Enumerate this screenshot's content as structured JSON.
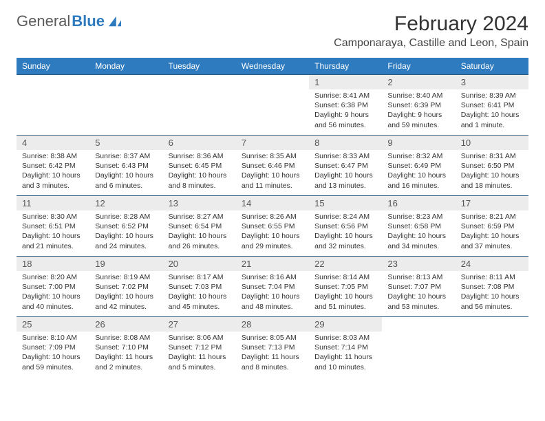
{
  "brand": {
    "name1": "General",
    "name2": "Blue"
  },
  "title": "February 2024",
  "location": "Camponaraya, Castille and Leon, Spain",
  "weekdays": [
    "Sunday",
    "Monday",
    "Tuesday",
    "Wednesday",
    "Thursday",
    "Friday",
    "Saturday"
  ],
  "colors": {
    "header_bg": "#2f7bbf",
    "header_text": "#ffffff",
    "daynum_bg": "#ececec",
    "border": "#2f5a7a",
    "brand_gray": "#5a5a5a",
    "brand_blue": "#2f7bbf"
  },
  "weeks": [
    [
      null,
      null,
      null,
      null,
      {
        "n": "1",
        "sr": "Sunrise: 8:41 AM",
        "ss": "Sunset: 6:38 PM",
        "d1": "Daylight: 9 hours",
        "d2": "and 56 minutes."
      },
      {
        "n": "2",
        "sr": "Sunrise: 8:40 AM",
        "ss": "Sunset: 6:39 PM",
        "d1": "Daylight: 9 hours",
        "d2": "and 59 minutes."
      },
      {
        "n": "3",
        "sr": "Sunrise: 8:39 AM",
        "ss": "Sunset: 6:41 PM",
        "d1": "Daylight: 10 hours",
        "d2": "and 1 minute."
      }
    ],
    [
      {
        "n": "4",
        "sr": "Sunrise: 8:38 AM",
        "ss": "Sunset: 6:42 PM",
        "d1": "Daylight: 10 hours",
        "d2": "and 3 minutes."
      },
      {
        "n": "5",
        "sr": "Sunrise: 8:37 AM",
        "ss": "Sunset: 6:43 PM",
        "d1": "Daylight: 10 hours",
        "d2": "and 6 minutes."
      },
      {
        "n": "6",
        "sr": "Sunrise: 8:36 AM",
        "ss": "Sunset: 6:45 PM",
        "d1": "Daylight: 10 hours",
        "d2": "and 8 minutes."
      },
      {
        "n": "7",
        "sr": "Sunrise: 8:35 AM",
        "ss": "Sunset: 6:46 PM",
        "d1": "Daylight: 10 hours",
        "d2": "and 11 minutes."
      },
      {
        "n": "8",
        "sr": "Sunrise: 8:33 AM",
        "ss": "Sunset: 6:47 PM",
        "d1": "Daylight: 10 hours",
        "d2": "and 13 minutes."
      },
      {
        "n": "9",
        "sr": "Sunrise: 8:32 AM",
        "ss": "Sunset: 6:49 PM",
        "d1": "Daylight: 10 hours",
        "d2": "and 16 minutes."
      },
      {
        "n": "10",
        "sr": "Sunrise: 8:31 AM",
        "ss": "Sunset: 6:50 PM",
        "d1": "Daylight: 10 hours",
        "d2": "and 18 minutes."
      }
    ],
    [
      {
        "n": "11",
        "sr": "Sunrise: 8:30 AM",
        "ss": "Sunset: 6:51 PM",
        "d1": "Daylight: 10 hours",
        "d2": "and 21 minutes."
      },
      {
        "n": "12",
        "sr": "Sunrise: 8:28 AM",
        "ss": "Sunset: 6:52 PM",
        "d1": "Daylight: 10 hours",
        "d2": "and 24 minutes."
      },
      {
        "n": "13",
        "sr": "Sunrise: 8:27 AM",
        "ss": "Sunset: 6:54 PM",
        "d1": "Daylight: 10 hours",
        "d2": "and 26 minutes."
      },
      {
        "n": "14",
        "sr": "Sunrise: 8:26 AM",
        "ss": "Sunset: 6:55 PM",
        "d1": "Daylight: 10 hours",
        "d2": "and 29 minutes."
      },
      {
        "n": "15",
        "sr": "Sunrise: 8:24 AM",
        "ss": "Sunset: 6:56 PM",
        "d1": "Daylight: 10 hours",
        "d2": "and 32 minutes."
      },
      {
        "n": "16",
        "sr": "Sunrise: 8:23 AM",
        "ss": "Sunset: 6:58 PM",
        "d1": "Daylight: 10 hours",
        "d2": "and 34 minutes."
      },
      {
        "n": "17",
        "sr": "Sunrise: 8:21 AM",
        "ss": "Sunset: 6:59 PM",
        "d1": "Daylight: 10 hours",
        "d2": "and 37 minutes."
      }
    ],
    [
      {
        "n": "18",
        "sr": "Sunrise: 8:20 AM",
        "ss": "Sunset: 7:00 PM",
        "d1": "Daylight: 10 hours",
        "d2": "and 40 minutes."
      },
      {
        "n": "19",
        "sr": "Sunrise: 8:19 AM",
        "ss": "Sunset: 7:02 PM",
        "d1": "Daylight: 10 hours",
        "d2": "and 42 minutes."
      },
      {
        "n": "20",
        "sr": "Sunrise: 8:17 AM",
        "ss": "Sunset: 7:03 PM",
        "d1": "Daylight: 10 hours",
        "d2": "and 45 minutes."
      },
      {
        "n": "21",
        "sr": "Sunrise: 8:16 AM",
        "ss": "Sunset: 7:04 PM",
        "d1": "Daylight: 10 hours",
        "d2": "and 48 minutes."
      },
      {
        "n": "22",
        "sr": "Sunrise: 8:14 AM",
        "ss": "Sunset: 7:05 PM",
        "d1": "Daylight: 10 hours",
        "d2": "and 51 minutes."
      },
      {
        "n": "23",
        "sr": "Sunrise: 8:13 AM",
        "ss": "Sunset: 7:07 PM",
        "d1": "Daylight: 10 hours",
        "d2": "and 53 minutes."
      },
      {
        "n": "24",
        "sr": "Sunrise: 8:11 AM",
        "ss": "Sunset: 7:08 PM",
        "d1": "Daylight: 10 hours",
        "d2": "and 56 minutes."
      }
    ],
    [
      {
        "n": "25",
        "sr": "Sunrise: 8:10 AM",
        "ss": "Sunset: 7:09 PM",
        "d1": "Daylight: 10 hours",
        "d2": "and 59 minutes."
      },
      {
        "n": "26",
        "sr": "Sunrise: 8:08 AM",
        "ss": "Sunset: 7:10 PM",
        "d1": "Daylight: 11 hours",
        "d2": "and 2 minutes."
      },
      {
        "n": "27",
        "sr": "Sunrise: 8:06 AM",
        "ss": "Sunset: 7:12 PM",
        "d1": "Daylight: 11 hours",
        "d2": "and 5 minutes."
      },
      {
        "n": "28",
        "sr": "Sunrise: 8:05 AM",
        "ss": "Sunset: 7:13 PM",
        "d1": "Daylight: 11 hours",
        "d2": "and 8 minutes."
      },
      {
        "n": "29",
        "sr": "Sunrise: 8:03 AM",
        "ss": "Sunset: 7:14 PM",
        "d1": "Daylight: 11 hours",
        "d2": "and 10 minutes."
      },
      null,
      null
    ]
  ]
}
